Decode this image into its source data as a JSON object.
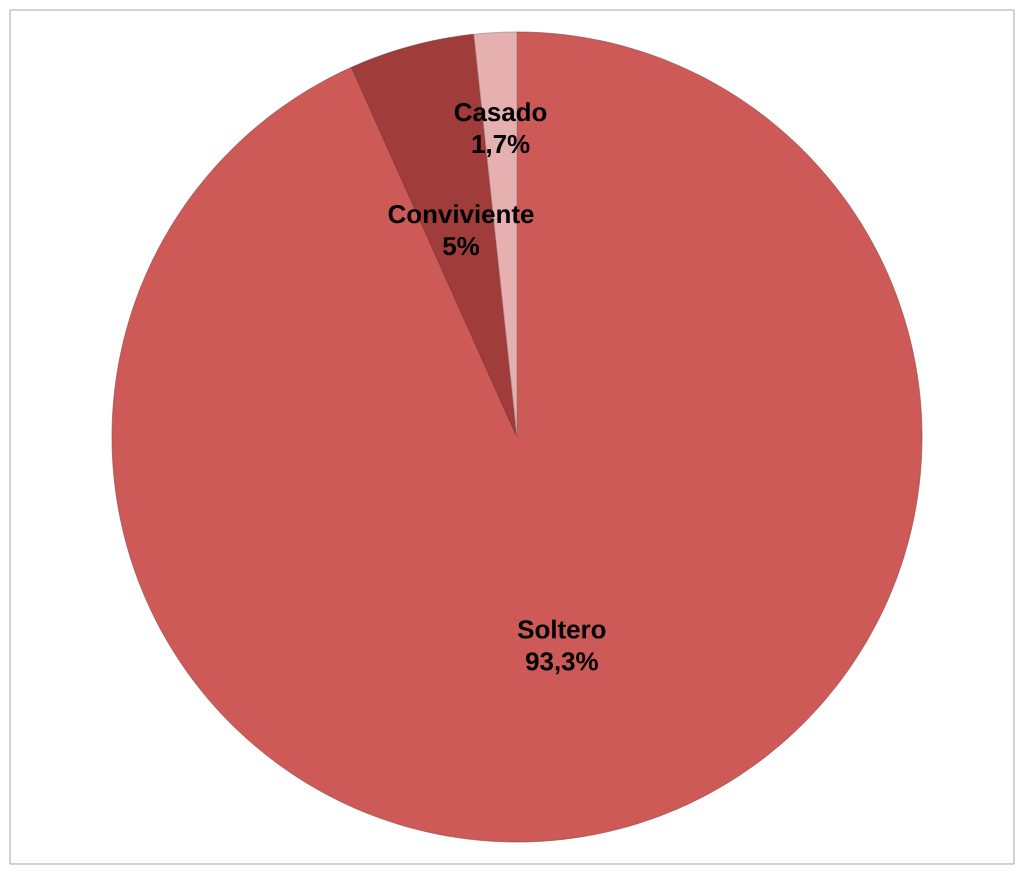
{
  "chart_data": {
    "type": "pie",
    "categories": [
      "Soltero",
      "Conviviente",
      "Casado"
    ],
    "values": [
      93.3,
      5,
      1.7
    ],
    "value_labels": [
      "93,3%",
      "5%",
      "1,7%"
    ],
    "colors": [
      "#cd5a57",
      "#a03c3a",
      "#e6b0b0"
    ]
  }
}
